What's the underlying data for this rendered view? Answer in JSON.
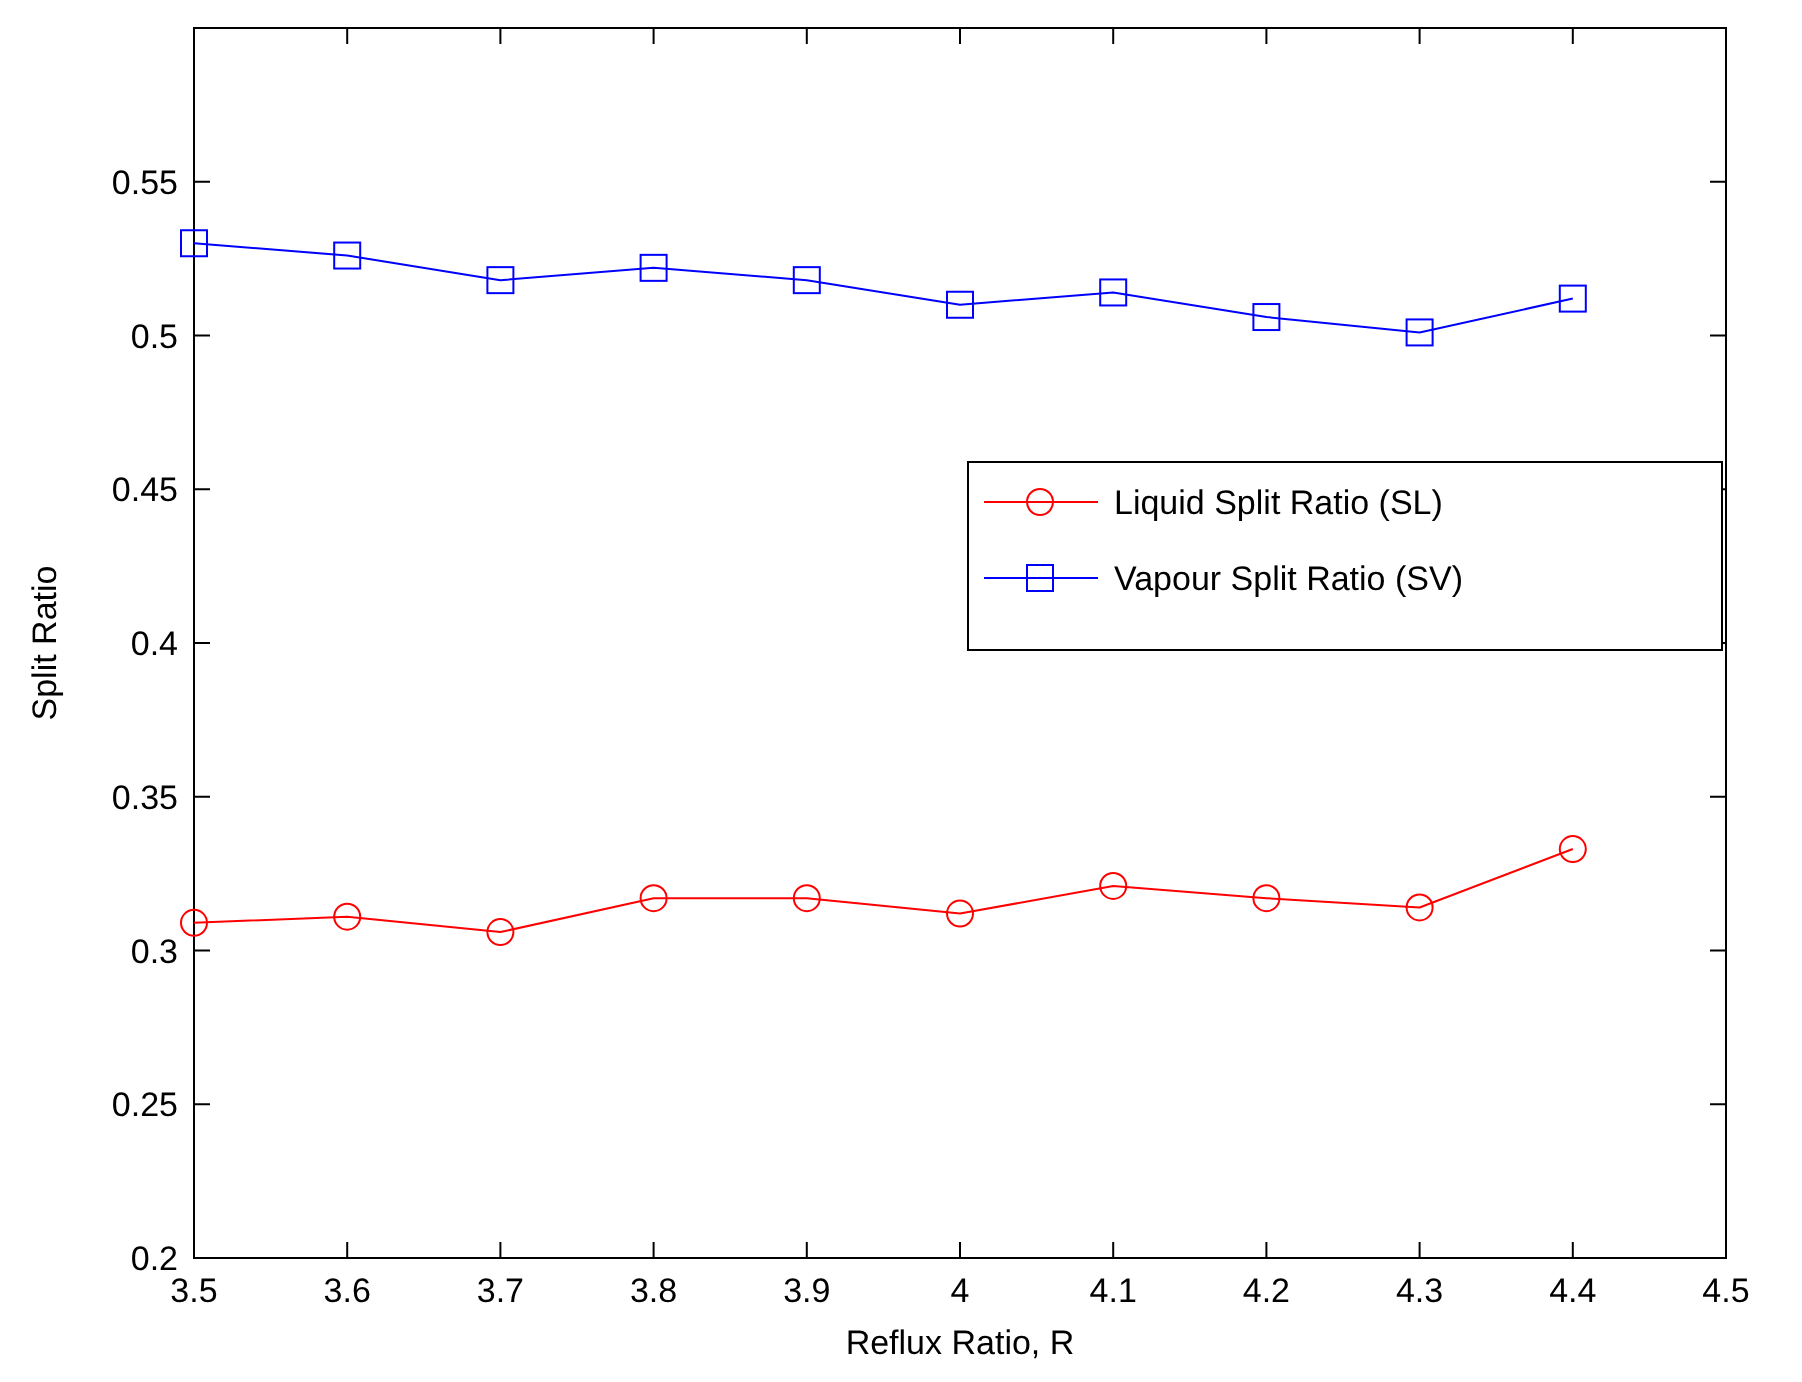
{
  "chart_data": {
    "type": "line",
    "xlabel": "Reflux Ratio, R",
    "ylabel": "Split Ratio",
    "x": [
      3.5,
      3.6,
      3.7,
      3.8,
      3.9,
      4,
      4.1,
      4.2,
      4.3,
      4.4
    ],
    "series": [
      {
        "name": "Liquid Split Ratio (SL)",
        "color": "#ff0000",
        "marker": "circle",
        "values": [
          0.309,
          0.311,
          0.306,
          0.317,
          0.317,
          0.312,
          0.321,
          0.317,
          0.314,
          0.333
        ]
      },
      {
        "name": "Vapour Split Ratio (SV)",
        "color": "#0000ff",
        "marker": "square",
        "values": [
          0.53,
          0.526,
          0.518,
          0.522,
          0.518,
          0.51,
          0.514,
          0.506,
          0.501,
          0.512
        ]
      }
    ],
    "xlim": [
      3.5,
      4.5
    ],
    "xticks": [
      3.5,
      3.6,
      3.7,
      3.8,
      3.9,
      4,
      4.1,
      4.2,
      4.3,
      4.4,
      4.5
    ],
    "ylim": [
      0.2,
      0.6
    ],
    "yticks": [
      0.2,
      0.25,
      0.3,
      0.35,
      0.4,
      0.45,
      0.5,
      0.55
    ],
    "legend": "right",
    "grid": false,
    "line_style": "solid"
  }
}
